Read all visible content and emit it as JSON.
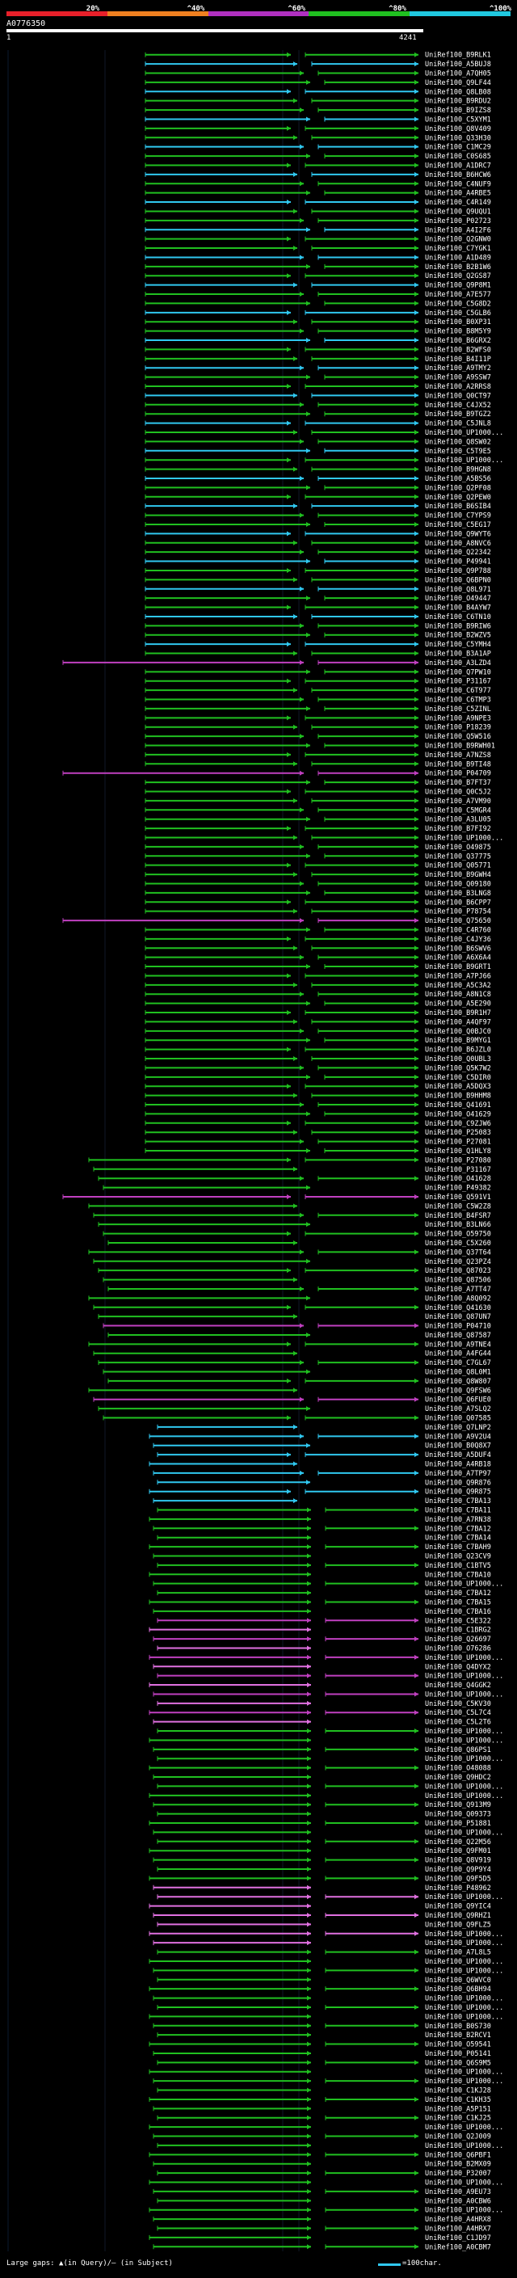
{
  "header": {
    "scale_labels": [
      "20%",
      "^40%",
      "^60%",
      "^80%",
      "^100%"
    ],
    "scale_colors": [
      "#e8202a",
      "#f08020",
      "#b030c0",
      "#20c020",
      "#20c8e0"
    ],
    "query_name": "A0776350",
    "query_start": "1",
    "query_end": "4241"
  },
  "colors": {
    "green": "#20c020",
    "cyan": "#30c8f0",
    "magenta": "#c040c0",
    "pink": "#e070e0"
  },
  "hits": [
    "UniRef100_B9RLK1",
    "UniRef100_A5BUJ8",
    "UniRef100_A7QH05",
    "UniRef100_Q9LF44",
    "UniRef100_Q8LB08",
    "UniRef100_B9RDU2",
    "UniRef100_B9IZS8",
    "UniRef100_C5XYM1",
    "UniRef100_Q8V409",
    "UniRef100_Q33H30",
    "UniRef100_C1MC29",
    "UniRef100_C0S685",
    "UniRef100_A1DRC7",
    "UniRef100_B6HCW6",
    "UniRef100_C4NUF9",
    "UniRef100_A4RBE5",
    "UniRef100_C4R149",
    "UniRef100_Q9UQU1",
    "UniRef100_P02723",
    "UniRef100_A4I2F6",
    "UniRef100_Q2GNW0",
    "UniRef100_C7YGK1",
    "UniRef100_A1D489",
    "UniRef100_B2B1W6",
    "UniRef100_Q2GS87",
    "UniRef100_Q9P8M1",
    "UniRef100_A7E577",
    "UniRef100_C5G8D2",
    "UniRef100_C5GLB6",
    "UniRef100_B0XP31",
    "UniRef100_B8M5Y9",
    "UniRef100_B6GRX2",
    "UniRef100_B2WFS0",
    "UniRef100_B4I11P",
    "UniRef100_A9TMY2",
    "UniRef100_A9SSW7",
    "UniRef100_A2RRS8",
    "UniRef100_Q0CT97",
    "UniRef100_C4JX52",
    "UniRef100_B9TGZ2",
    "UniRef100_C5JNL8",
    "UniRef100_UP1000...",
    "UniRef100_Q8SW02",
    "UniRef100_C5T9E5",
    "UniRef100_UP1000...",
    "UniRef100_B9HGN8",
    "UniRef100_A5BS56",
    "UniRef100_Q2PF08",
    "UniRef100_Q2PEW0",
    "UniRef100_B6SIB4",
    "UniRef100_C7YPS9",
    "UniRef100_C5EG17",
    "UniRef100_Q9WYT6",
    "UniRef100_A8NVC6",
    "UniRef100_Q22342",
    "UniRef100_P49941",
    "UniRef100_Q9P788",
    "UniRef100_Q6BPN0",
    "UniRef100_Q8L971",
    "UniRef100_O49447",
    "UniRef100_B4AYW7",
    "UniRef100_C6TN10",
    "UniRef100_B9RIW6",
    "UniRef100_B2WZV5",
    "UniRef100_C5YMH4",
    "UniRef100_B3A1AP",
    "UniRef100_A3LZD4",
    "UniRef100_Q7PW10",
    "UniRef100_P31167",
    "UniRef100_C6T977",
    "UniRef100_C6TMP3",
    "UniRef100_C5ZINL",
    "UniRef100_A9NPE3",
    "UniRef100_P18239",
    "UniRef100_Q5W516",
    "UniRef100_B9RWH01",
    "UniRef100_A7NZS8",
    "UniRef100_B9TI48",
    "UniRef100_P04709",
    "UniRef100_B7FT37",
    "UniRef100_Q0C5J2",
    "UniRef100_A7VM90",
    "UniRef100_C5MGR4",
    "UniRef100_A3LU05",
    "UniRef100_B7FI92",
    "UniRef100_UP1000...",
    "UniRef100_O49875",
    "UniRef100_Q37775",
    "UniRef100_Q05771",
    "UniRef100_B9GWH4",
    "UniRef100_Q09180",
    "UniRef100_B3LNG8",
    "UniRef100_B6CPP7",
    "UniRef100_P78754",
    "UniRef100_Q75650",
    "UniRef100_C4R760",
    "UniRef100_C4JY36",
    "UniRef100_B6SWV6",
    "UniRef100_A6X6A4",
    "UniRef100_B9GRT1",
    "UniRef100_A7PJ66",
    "UniRef100_A5C3A2",
    "UniRef100_A8N1C8",
    "UniRef100_A5E290",
    "UniRef100_B9R1H7",
    "UniRef100_A4QF97",
    "UniRef100_Q0BJC0",
    "UniRef100_B9MYG1",
    "UniRef100_B6JZL0",
    "UniRef100_Q0UBL3",
    "UniRef100_Q5K7W2",
    "UniRef100_C5DIR0",
    "UniRef100_A5DQX3",
    "UniRef100_B9HHM8",
    "UniRef100_Q41691",
    "UniRef100_O41629",
    "UniRef100_C9ZJW6",
    "UniRef100_P25083",
    "UniRef100_P27081",
    "UniRef100_Q1HLY8",
    "UniRef100_P27080",
    "UniRef100_P31167",
    "UniRef100_O41628",
    "UniRef100_P49382",
    "UniRef100_Q591V1",
    "UniRef100_C5W2Z8",
    "UniRef100_B4FSR7",
    "UniRef100_B3LN66",
    "UniRef100_O59750",
    "UniRef100_C5X260",
    "UniRef100_Q37T64",
    "UniRef100_Q23PZ4",
    "UniRef100_Q87023",
    "UniRef100_Q87506",
    "UniRef100_A7TT47",
    "UniRef100_A8Q092",
    "UniRef100_Q41630",
    "UniRef100_Q87UN7",
    "UniRef100_P04710",
    "UniRef100_Q87587",
    "UniRef100_A9TNE4",
    "UniRef100_A4FG44",
    "UniRef100_C7GL67",
    "UniRef100_Q8L0M1",
    "UniRef100_Q8W807",
    "UniRef100_Q9FSW6",
    "UniRef100_Q6FUE0",
    "UniRef100_A7SLQ2",
    "UniRef100_Q07585",
    "UniRef100_Q7LNP2",
    "UniRef100_A9V2U4",
    "UniRef100_B0Q8X7",
    "UniRef100_A5DUF4",
    "UniRef100_A4RB18",
    "UniRef100_A7TP97",
    "UniRef100_Q9R876",
    "UniRef100_Q9R875",
    "UniRef100_C7BA13",
    "UniRef100_C7BA11",
    "UniRef100_A7RN38",
    "UniRef100_C7BA12",
    "UniRef100_C7BA14",
    "UniRef100_C7BAH9",
    "UniRef100_Q23CV9",
    "UniRef100_C1BTV5",
    "UniRef100_C7BA10",
    "UniRef100_UP1000...",
    "UniRef100_C7BA12",
    "UniRef100_C7BA15",
    "UniRef100_C7BA16",
    "UniRef100_C5E322",
    "UniRef100_C1BRG2",
    "UniRef100_Q26697",
    "UniRef100_O76286",
    "UniRef100_UP1000...",
    "UniRef100_Q4DYX2",
    "UniRef100_UP1000...",
    "UniRef100_Q4GGK2",
    "UniRef100_UP1000...",
    "UniRef100_C5KV30",
    "UniRef100_C5L7C4",
    "UniRef100_C5L2T6",
    "UniRef100_UP1000...",
    "UniRef100_UP1000...",
    "UniRef100_Q86PS1",
    "UniRef100_UP1000...",
    "UniRef100_O48088",
    "UniRef100_Q9HDC2",
    "UniRef100_UP1000...",
    "UniRef100_UP1000...",
    "UniRef100_Q913M9",
    "UniRef100_Q09373",
    "UniRef100_P51881",
    "UniRef100_UP1000...",
    "UniRef100_Q22M56",
    "UniRef100_Q9FM01",
    "UniRef100_Q8V919",
    "UniRef100_Q9P9Y4",
    "UniRef100_Q9F5D5",
    "UniRef100_P48962",
    "UniRef100_UP1000...",
    "UniRef100_Q9YIC4",
    "UniRef100_Q9RHZ1",
    "UniRef100_Q9FLZ5",
    "UniRef100_UP1000...",
    "UniRef100_UP1000...",
    "UniRef100_A7L8L5",
    "UniRef100_UP1000...",
    "UniRef100_UP1000...",
    "UniRef100_Q6WVC0",
    "UniRef100_Q6BH94",
    "UniRef100_UP1000...",
    "UniRef100_UP1000...",
    "UniRef100_UP1000...",
    "UniRef100_B0S730",
    "UniRef100_B2RCV1",
    "UniRef100_O59541",
    "UniRef100_P05141",
    "UniRef100_Q6S9M5",
    "UniRef100_UP1000...",
    "UniRef100_UP1000...",
    "UniRef100_C1KJ28",
    "UniRef100_C1KH35",
    "UniRef100_A5P151",
    "UniRef100_C1KJ25",
    "UniRef100_UP1000...",
    "UniRef100_Q2J009",
    "UniRef100_UP1000...",
    "UniRef100_Q6PBF1",
    "UniRef100_B2MX09",
    "UniRef100_P32007",
    "UniRef100_UP1000...",
    "UniRef100_A9EU73",
    "UniRef100_A0CBW6",
    "UniRef100_UP1000...",
    "UniRef100_A4HRX8",
    "UniRef100_A4HRX7",
    "UniRef100_C1JD97",
    "UniRef100_A0CBM7"
  ],
  "footer": {
    "legend_text": "Large gaps: ▲(in Query)/– (in Subject)",
    "scale_text": "=100char."
  }
}
